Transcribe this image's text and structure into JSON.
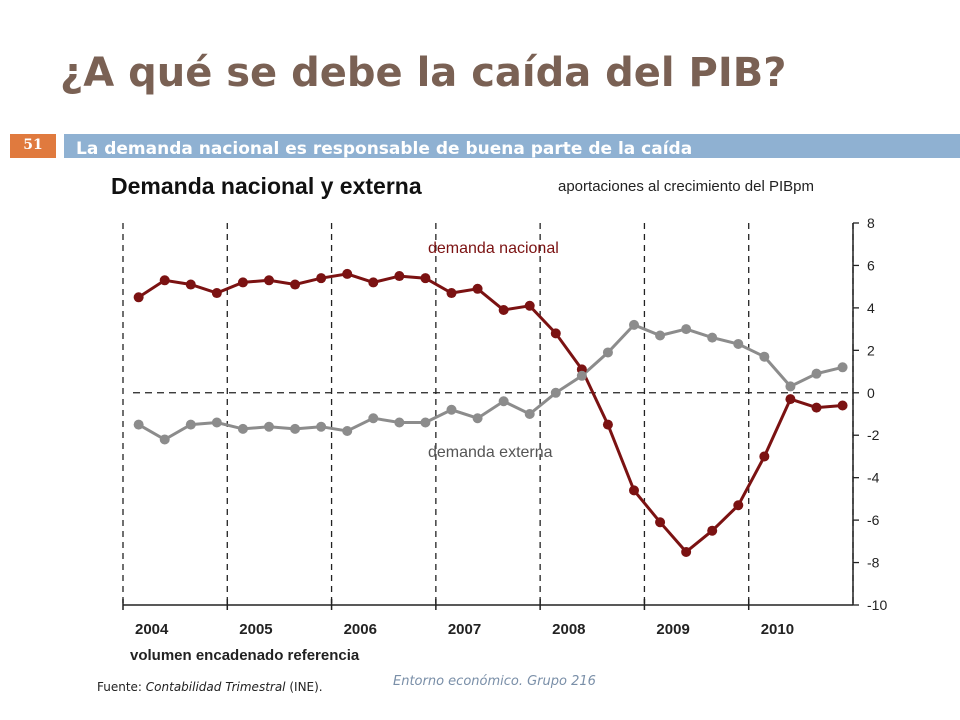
{
  "slide": {
    "title": "¿A qué se debe la caída del PIB?",
    "page_number": "51",
    "banner": "La demanda nacional es responsable  de buena parte de la caída",
    "footer": "Entorno económico. Grupo 216"
  },
  "source": {
    "prefix": "Fuente: ",
    "name": "Contabilidad Trimestral",
    "suffix": " (INE)."
  },
  "colors": {
    "demanda_nacional": "#7b1212",
    "demanda_externa": "#8c8c8c",
    "title": "#7a6154",
    "banner": "#8fb1d2",
    "page_number": "#e07a3e"
  },
  "chart_data": {
    "type": "line",
    "title": "Demanda nacional y externa",
    "subtitle": "aportaciones al crecimiento del PIBpm",
    "xlabel": "volumen encadenado referencia",
    "y_axis_position": "right",
    "ylim": [
      -10,
      8
    ],
    "yticks": [
      8,
      6,
      4,
      2,
      0,
      -2,
      -4,
      -6,
      -8,
      -10
    ],
    "year_labels": [
      "2004",
      "2005",
      "2006",
      "2007",
      "2008",
      "2009",
      "2010"
    ],
    "x": [
      "2004-I",
      "2004-II",
      "2004-III",
      "2004-IV",
      "2005-I",
      "2005-II",
      "2005-III",
      "2005-IV",
      "2006-I",
      "2006-II",
      "2006-III",
      "2006-IV",
      "2007-I",
      "2007-II",
      "2007-III",
      "2007-IV",
      "2008-I",
      "2008-II",
      "2008-III",
      "2008-IV",
      "2009-I",
      "2009-II",
      "2009-III",
      "2009-IV",
      "2010-I",
      "2010-II",
      "2010-III",
      "2010-IV"
    ],
    "series": [
      {
        "name": "demanda nacional",
        "values": [
          4.5,
          5.3,
          5.1,
          4.7,
          5.2,
          5.3,
          5.1,
          5.4,
          5.6,
          5.2,
          5.5,
          5.4,
          4.7,
          4.9,
          3.9,
          4.1,
          2.8,
          1.1,
          -1.5,
          -4.6,
          -6.1,
          -7.5,
          -6.5,
          -5.3,
          -3.0,
          -0.3,
          -0.7,
          -0.6
        ]
      },
      {
        "name": "demanda externa",
        "values": [
          -1.5,
          -2.2,
          -1.5,
          -1.4,
          -1.7,
          -1.6,
          -1.7,
          -1.6,
          -1.8,
          -1.2,
          -1.4,
          -1.4,
          -0.8,
          -1.2,
          -0.4,
          -1.0,
          0.0,
          0.8,
          1.9,
          3.2,
          2.7,
          3.0,
          2.6,
          2.3,
          1.7,
          0.3,
          0.9,
          1.2
        ]
      }
    ]
  }
}
